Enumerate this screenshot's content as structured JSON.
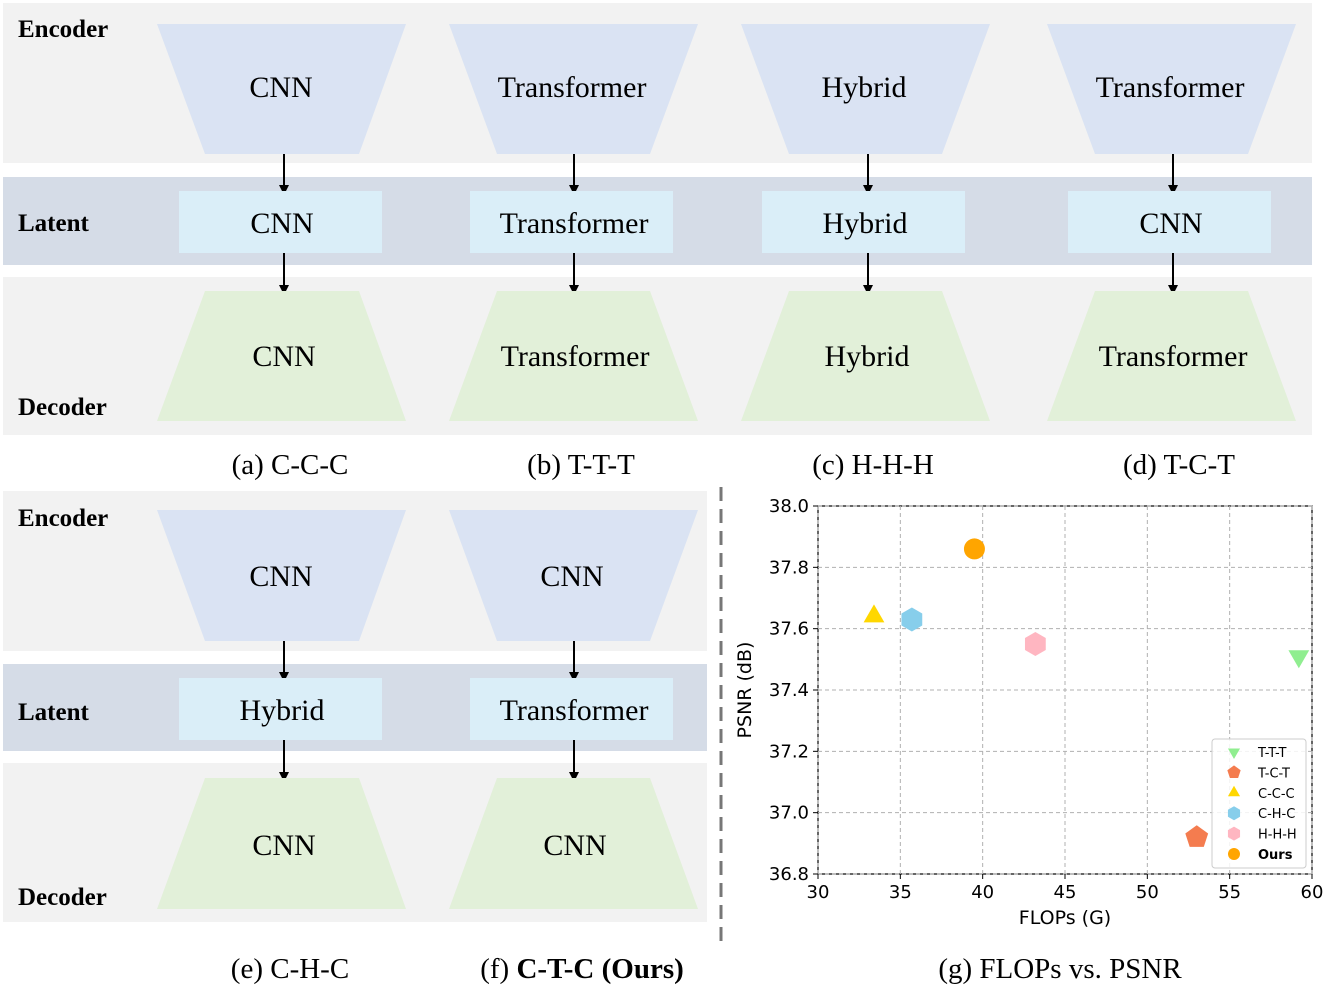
{
  "row_labels": {
    "encoder": "Encoder",
    "latent": "Latent",
    "decoder": "Decoder"
  },
  "top_panels": [
    {
      "encoder": "CNN",
      "latent": "CNN",
      "decoder": "CNN",
      "caption": "(a) C-C-C"
    },
    {
      "encoder": "Transformer",
      "latent": "Transformer",
      "decoder": "Transformer",
      "caption": "(b) T-T-T"
    },
    {
      "encoder": "Hybrid",
      "latent": "Hybrid",
      "decoder": "Hybrid",
      "caption": "(c) H-H-H"
    },
    {
      "encoder": "Transformer",
      "latent": "CNN",
      "decoder": "Transformer",
      "caption": "(d) T-C-T"
    }
  ],
  "bottom_panels": [
    {
      "encoder": "CNN",
      "latent": "Hybrid",
      "decoder": "CNN",
      "caption": "(e) C-H-C"
    },
    {
      "encoder": "CNN",
      "latent": "Transformer",
      "decoder": "CNN",
      "caption_prefix": "(f) ",
      "caption_bold": "C-T-C (Ours)"
    }
  ],
  "colors": {
    "encoder_fill": "#dae3f3",
    "latent_fill": "#daeef8",
    "decoder_fill": "#e2f0d9",
    "band_light": "#f2f2f2",
    "band_latent": "#d5dce7"
  },
  "chart_caption": "(g) FLOPs vs. PSNR",
  "chart_data": {
    "type": "scatter",
    "xlabel": "FLOPs (G)",
    "ylabel": "PSNR (dB)",
    "xlim": [
      30,
      60
    ],
    "ylim": [
      36.8,
      38.0
    ],
    "xticks": [
      "30",
      "35",
      "40",
      "45",
      "50",
      "55",
      "60"
    ],
    "yticks": [
      "36.8",
      "37.0",
      "37.2",
      "37.4",
      "37.6",
      "37.8",
      "38.0"
    ],
    "grid": true,
    "legend_position": "lower-right",
    "series": [
      {
        "name": "T-T-T",
        "marker": "triangle-down",
        "color": "#90ee90",
        "x": 59.2,
        "y": 37.51
      },
      {
        "name": "T-C-T",
        "marker": "pentagon",
        "color": "#f47c4f",
        "x": 53.0,
        "y": 36.92
      },
      {
        "name": "C-C-C",
        "marker": "triangle-up",
        "color": "#ffd700",
        "x": 33.4,
        "y": 37.64
      },
      {
        "name": "C-H-C",
        "marker": "hexagon",
        "color": "#87ceeb",
        "x": 35.7,
        "y": 37.63
      },
      {
        "name": "H-H-H",
        "marker": "hexagon",
        "color": "#ffb6c1",
        "x": 43.2,
        "y": 37.55
      },
      {
        "name": "Ours",
        "marker": "circle",
        "color": "#ffa500",
        "x": 39.5,
        "y": 37.86,
        "bold": true
      }
    ]
  }
}
